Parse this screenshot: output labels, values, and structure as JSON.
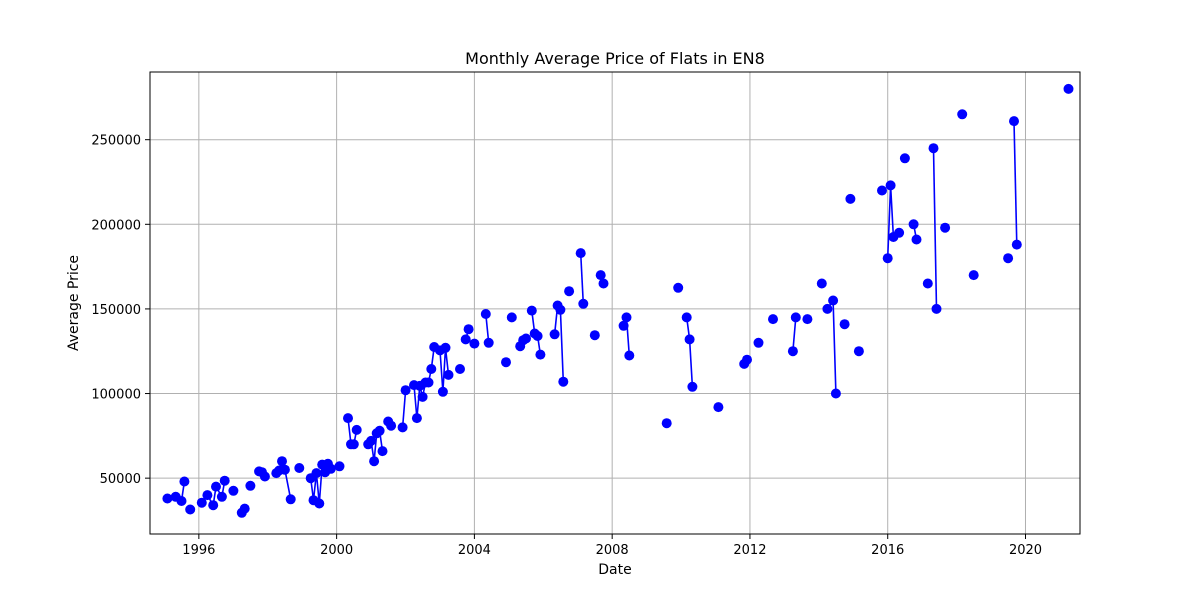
{
  "chart_data": {
    "type": "line",
    "title": "Monthly Average Price of Flats in EN8",
    "xlabel": "Date",
    "ylabel": "Average Price",
    "grid": true,
    "legend": "none",
    "series_color": "#0000ff",
    "xlim": [
      "1994-08-01",
      "2021-08-01"
    ],
    "ylim": [
      17000,
      290000
    ],
    "x_ticks": [
      {
        "value": "1996-01-01",
        "label": "1996"
      },
      {
        "value": "2000-01-01",
        "label": "2000"
      },
      {
        "value": "2004-01-01",
        "label": "2004"
      },
      {
        "value": "2008-01-01",
        "label": "2008"
      },
      {
        "value": "2012-01-01",
        "label": "2012"
      },
      {
        "value": "2016-01-01",
        "label": "2016"
      },
      {
        "value": "2020-01-01",
        "label": "2020"
      }
    ],
    "y_ticks": [
      {
        "value": 50000,
        "label": "50000"
      },
      {
        "value": 100000,
        "label": "100000"
      },
      {
        "value": 150000,
        "label": "150000"
      },
      {
        "value": 200000,
        "label": "200000"
      },
      {
        "value": 250000,
        "label": "250000"
      }
    ],
    "segments": [
      [
        [
          "1995-02",
          38000
        ],
        [
          "1995-05",
          39000
        ],
        [
          "1995-07",
          36500
        ],
        [
          "1995-08",
          48000
        ]
      ],
      [
        [
          "1995-10",
          31500
        ]
      ],
      [
        [
          "1996-02",
          35500
        ],
        [
          "1996-04",
          40000
        ],
        [
          "1996-06",
          34000
        ],
        [
          "1996-07",
          45000
        ],
        [
          "1996-09",
          39000
        ],
        [
          "1996-10",
          48500
        ]
      ],
      [
        [
          "1997-01",
          42500
        ]
      ],
      [
        [
          "1997-04",
          29500
        ],
        [
          "1997-05",
          32000
        ]
      ],
      [
        [
          "1997-07",
          45500
        ]
      ],
      [
        [
          "1997-10",
          54000
        ],
        [
          "1997-11",
          53500
        ],
        [
          "1997-12",
          51000
        ]
      ],
      [
        [
          "1998-04",
          53000
        ],
        [
          "1998-05",
          54500
        ],
        [
          "1998-06",
          60000
        ],
        [
          "1998-07",
          55000
        ],
        [
          "1998-09",
          37500
        ]
      ],
      [
        [
          "1998-12",
          56000
        ]
      ],
      [
        [
          "1999-04",
          50000
        ],
        [
          "1999-05",
          37000
        ],
        [
          "1999-06",
          53000
        ],
        [
          "1999-07",
          35000
        ],
        [
          "1999-08",
          58000
        ],
        [
          "1999-09",
          53500
        ],
        [
          "1999-10",
          58500
        ],
        [
          "1999-11",
          55500
        ]
      ],
      [
        [
          "2000-02",
          57000
        ]
      ],
      [
        [
          "2000-05",
          85500
        ],
        [
          "2000-06",
          70000
        ],
        [
          "2000-07",
          70000
        ],
        [
          "2000-08",
          78500
        ]
      ],
      [
        [
          "2000-12",
          70000
        ],
        [
          "2001-01",
          72000
        ],
        [
          "2001-02",
          60000
        ],
        [
          "2001-03",
          76500
        ],
        [
          "2001-04",
          78000
        ],
        [
          "2001-05",
          66000
        ]
      ],
      [
        [
          "2001-07",
          83500
        ],
        [
          "2001-08",
          81000
        ]
      ],
      [
        [
          "2001-12",
          80000
        ],
        [
          "2002-01",
          102000
        ]
      ],
      [
        [
          "2002-04",
          105000
        ],
        [
          "2002-05",
          85500
        ],
        [
          "2002-06",
          104500
        ],
        [
          "2002-07",
          98000
        ],
        [
          "2002-08",
          106500
        ],
        [
          "2002-09",
          106500
        ],
        [
          "2002-10",
          114500
        ],
        [
          "2002-11",
          127500
        ],
        [
          "2003-01",
          125500
        ],
        [
          "2003-02",
          101000
        ],
        [
          "2003-03",
          127000
        ],
        [
          "2003-04",
          111000
        ]
      ],
      [
        [
          "2003-08",
          114500
        ]
      ],
      [
        [
          "2003-10",
          132000
        ],
        [
          "2003-11",
          138000
        ]
      ],
      [
        [
          "2004-01",
          129500
        ]
      ],
      [
        [
          "2004-05",
          147000
        ],
        [
          "2004-06",
          130000
        ]
      ],
      [
        [
          "2004-12",
          118500
        ]
      ],
      [
        [
          "2005-02",
          145000
        ]
      ],
      [
        [
          "2005-05",
          128000
        ],
        [
          "2005-06",
          131500
        ],
        [
          "2005-07",
          132500
        ]
      ],
      [
        [
          "2005-09",
          149000
        ],
        [
          "2005-10",
          135500
        ],
        [
          "2005-11",
          134000
        ],
        [
          "2005-12",
          123000
        ]
      ],
      [
        [
          "2006-05",
          135000
        ],
        [
          "2006-06",
          152000
        ],
        [
          "2006-07",
          149500
        ],
        [
          "2006-08",
          107000
        ]
      ],
      [
        [
          "2006-10",
          160500
        ]
      ],
      [
        [
          "2007-02",
          183000
        ],
        [
          "2007-03",
          153000
        ]
      ],
      [
        [
          "2007-07",
          134500
        ]
      ],
      [
        [
          "2007-09",
          170000
        ],
        [
          "2007-10",
          165000
        ]
      ],
      [
        [
          "2008-05",
          140000
        ],
        [
          "2008-06",
          145000
        ],
        [
          "2008-07",
          122500
        ]
      ],
      [
        [
          "2009-08",
          82500
        ]
      ],
      [
        [
          "2009-12",
          162500
        ]
      ],
      [
        [
          "2010-03",
          145000
        ],
        [
          "2010-04",
          132000
        ],
        [
          "2010-05",
          104000
        ]
      ],
      [
        [
          "2011-02",
          92000
        ]
      ],
      [
        [
          "2011-11",
          117500
        ],
        [
          "2011-12",
          120000
        ]
      ],
      [
        [
          "2012-04",
          130000
        ]
      ],
      [
        [
          "2012-09",
          144000
        ]
      ],
      [
        [
          "2013-04",
          125000
        ],
        [
          "2013-05",
          145000
        ]
      ],
      [
        [
          "2013-09",
          144000
        ]
      ],
      [
        [
          "2014-02",
          165000
        ]
      ],
      [
        [
          "2014-04",
          150000
        ],
        [
          "2014-06",
          155000
        ],
        [
          "2014-07",
          100000
        ]
      ],
      [
        [
          "2014-10",
          141000
        ]
      ],
      [
        [
          "2014-12",
          215000
        ]
      ],
      [
        [
          "2015-03",
          125000
        ]
      ],
      [
        [
          "2015-11",
          220000
        ]
      ],
      [
        [
          "2016-01",
          180000
        ],
        [
          "2016-02",
          223000
        ],
        [
          "2016-03",
          192500
        ],
        [
          "2016-05",
          195000
        ]
      ],
      [
        [
          "2016-07",
          239000
        ]
      ],
      [
        [
          "2016-10",
          200000
        ],
        [
          "2016-11",
          191000
        ]
      ],
      [
        [
          "2017-03",
          165000
        ]
      ],
      [
        [
          "2017-05",
          245000
        ],
        [
          "2017-06",
          150000
        ]
      ],
      [
        [
          "2017-09",
          198000
        ]
      ],
      [
        [
          "2018-03",
          265000
        ]
      ],
      [
        [
          "2018-07",
          170000
        ]
      ],
      [
        [
          "2019-07",
          180000
        ]
      ],
      [
        [
          "2019-09",
          261000
        ],
        [
          "2019-10",
          188000
        ]
      ],
      [
        [
          "2021-04",
          280000
        ]
      ]
    ]
  }
}
